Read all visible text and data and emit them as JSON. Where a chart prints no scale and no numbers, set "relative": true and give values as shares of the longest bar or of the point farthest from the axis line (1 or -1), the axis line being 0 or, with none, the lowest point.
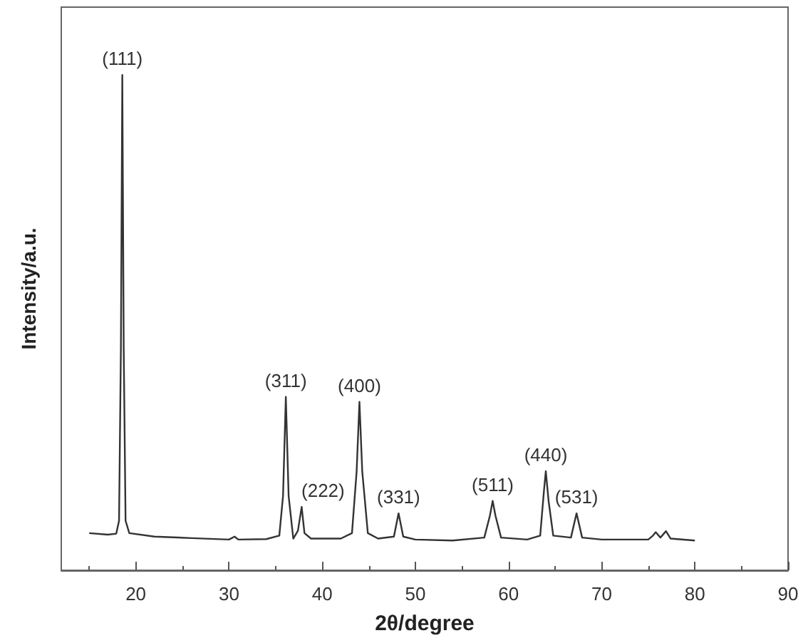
{
  "chart_data": {
    "type": "line",
    "relative": true,
    "color": "#333333",
    "xlabel": "2θ/degree",
    "ylabel": "Intensity/a.u.",
    "xlim": [
      12,
      90
    ],
    "xticks": [
      {
        "value": 15,
        "label": null
      },
      20,
      {
        "value": 25,
        "label": null
      },
      30,
      {
        "value": 35,
        "label": null
      },
      40,
      {
        "value": 45,
        "label": null
      },
      50,
      {
        "value": 55,
        "label": null
      },
      60,
      {
        "value": 65,
        "label": null
      },
      70,
      {
        "value": 75,
        "label": null
      },
      80,
      {
        "value": 85,
        "label": null
      },
      90
    ],
    "x": [
      15,
      17,
      17.9,
      18.2,
      18.4,
      18.55,
      18.7,
      18.9,
      19.3,
      22,
      26,
      30,
      30.6,
      31,
      34,
      35.4,
      35.8,
      36.1,
      36.4,
      36.9,
      37.4,
      37.8,
      38.1,
      38.8,
      42,
      43.2,
      43.7,
      44,
      44.3,
      44.9,
      46,
      47.7,
      48.2,
      48.7,
      50,
      54,
      57.4,
      58,
      58.3,
      58.6,
      59.2,
      62,
      63.4,
      63.8,
      64,
      64.3,
      64.8,
      66.7,
      67.3,
      67.9,
      70,
      75,
      75.5,
      75.8,
      76.3,
      76.9,
      77.4,
      80
    ],
    "values": [
      0.075,
      0.072,
      0.074,
      0.1,
      0.45,
      1,
      0.45,
      0.1,
      0.075,
      0.068,
      0.065,
      0.062,
      0.068,
      0.062,
      0.063,
      0.07,
      0.15,
      0.35,
      0.15,
      0.064,
      0.08,
      0.128,
      0.075,
      0.064,
      0.064,
      0.075,
      0.2,
      0.34,
      0.2,
      0.075,
      0.064,
      0.068,
      0.115,
      0.068,
      0.062,
      0.06,
      0.066,
      0.11,
      0.14,
      0.11,
      0.066,
      0.062,
      0.07,
      0.16,
      0.2,
      0.14,
      0.07,
      0.066,
      0.115,
      0.066,
      0.062,
      0.062,
      0.07,
      0.077,
      0.066,
      0.079,
      0.064,
      0.06
    ],
    "annotations": [
      {
        "text": "(111)",
        "x": 18.55,
        "y": 1
      },
      {
        "text": "(311)",
        "x": 36.1,
        "y": 0.35
      },
      {
        "text": "(222)",
        "x": 37.8,
        "y": 0.128
      },
      {
        "text": "(400)",
        "x": 44,
        "y": 0.34
      },
      {
        "text": "(331)",
        "x": 48.2,
        "y": 0.115
      },
      {
        "text": "(511)",
        "x": 58.3,
        "y": 0.14
      },
      {
        "text": "(440)",
        "x": 64,
        "y": 0.2
      },
      {
        "text": "(531)",
        "x": 67.3,
        "y": 0.115
      }
    ]
  }
}
